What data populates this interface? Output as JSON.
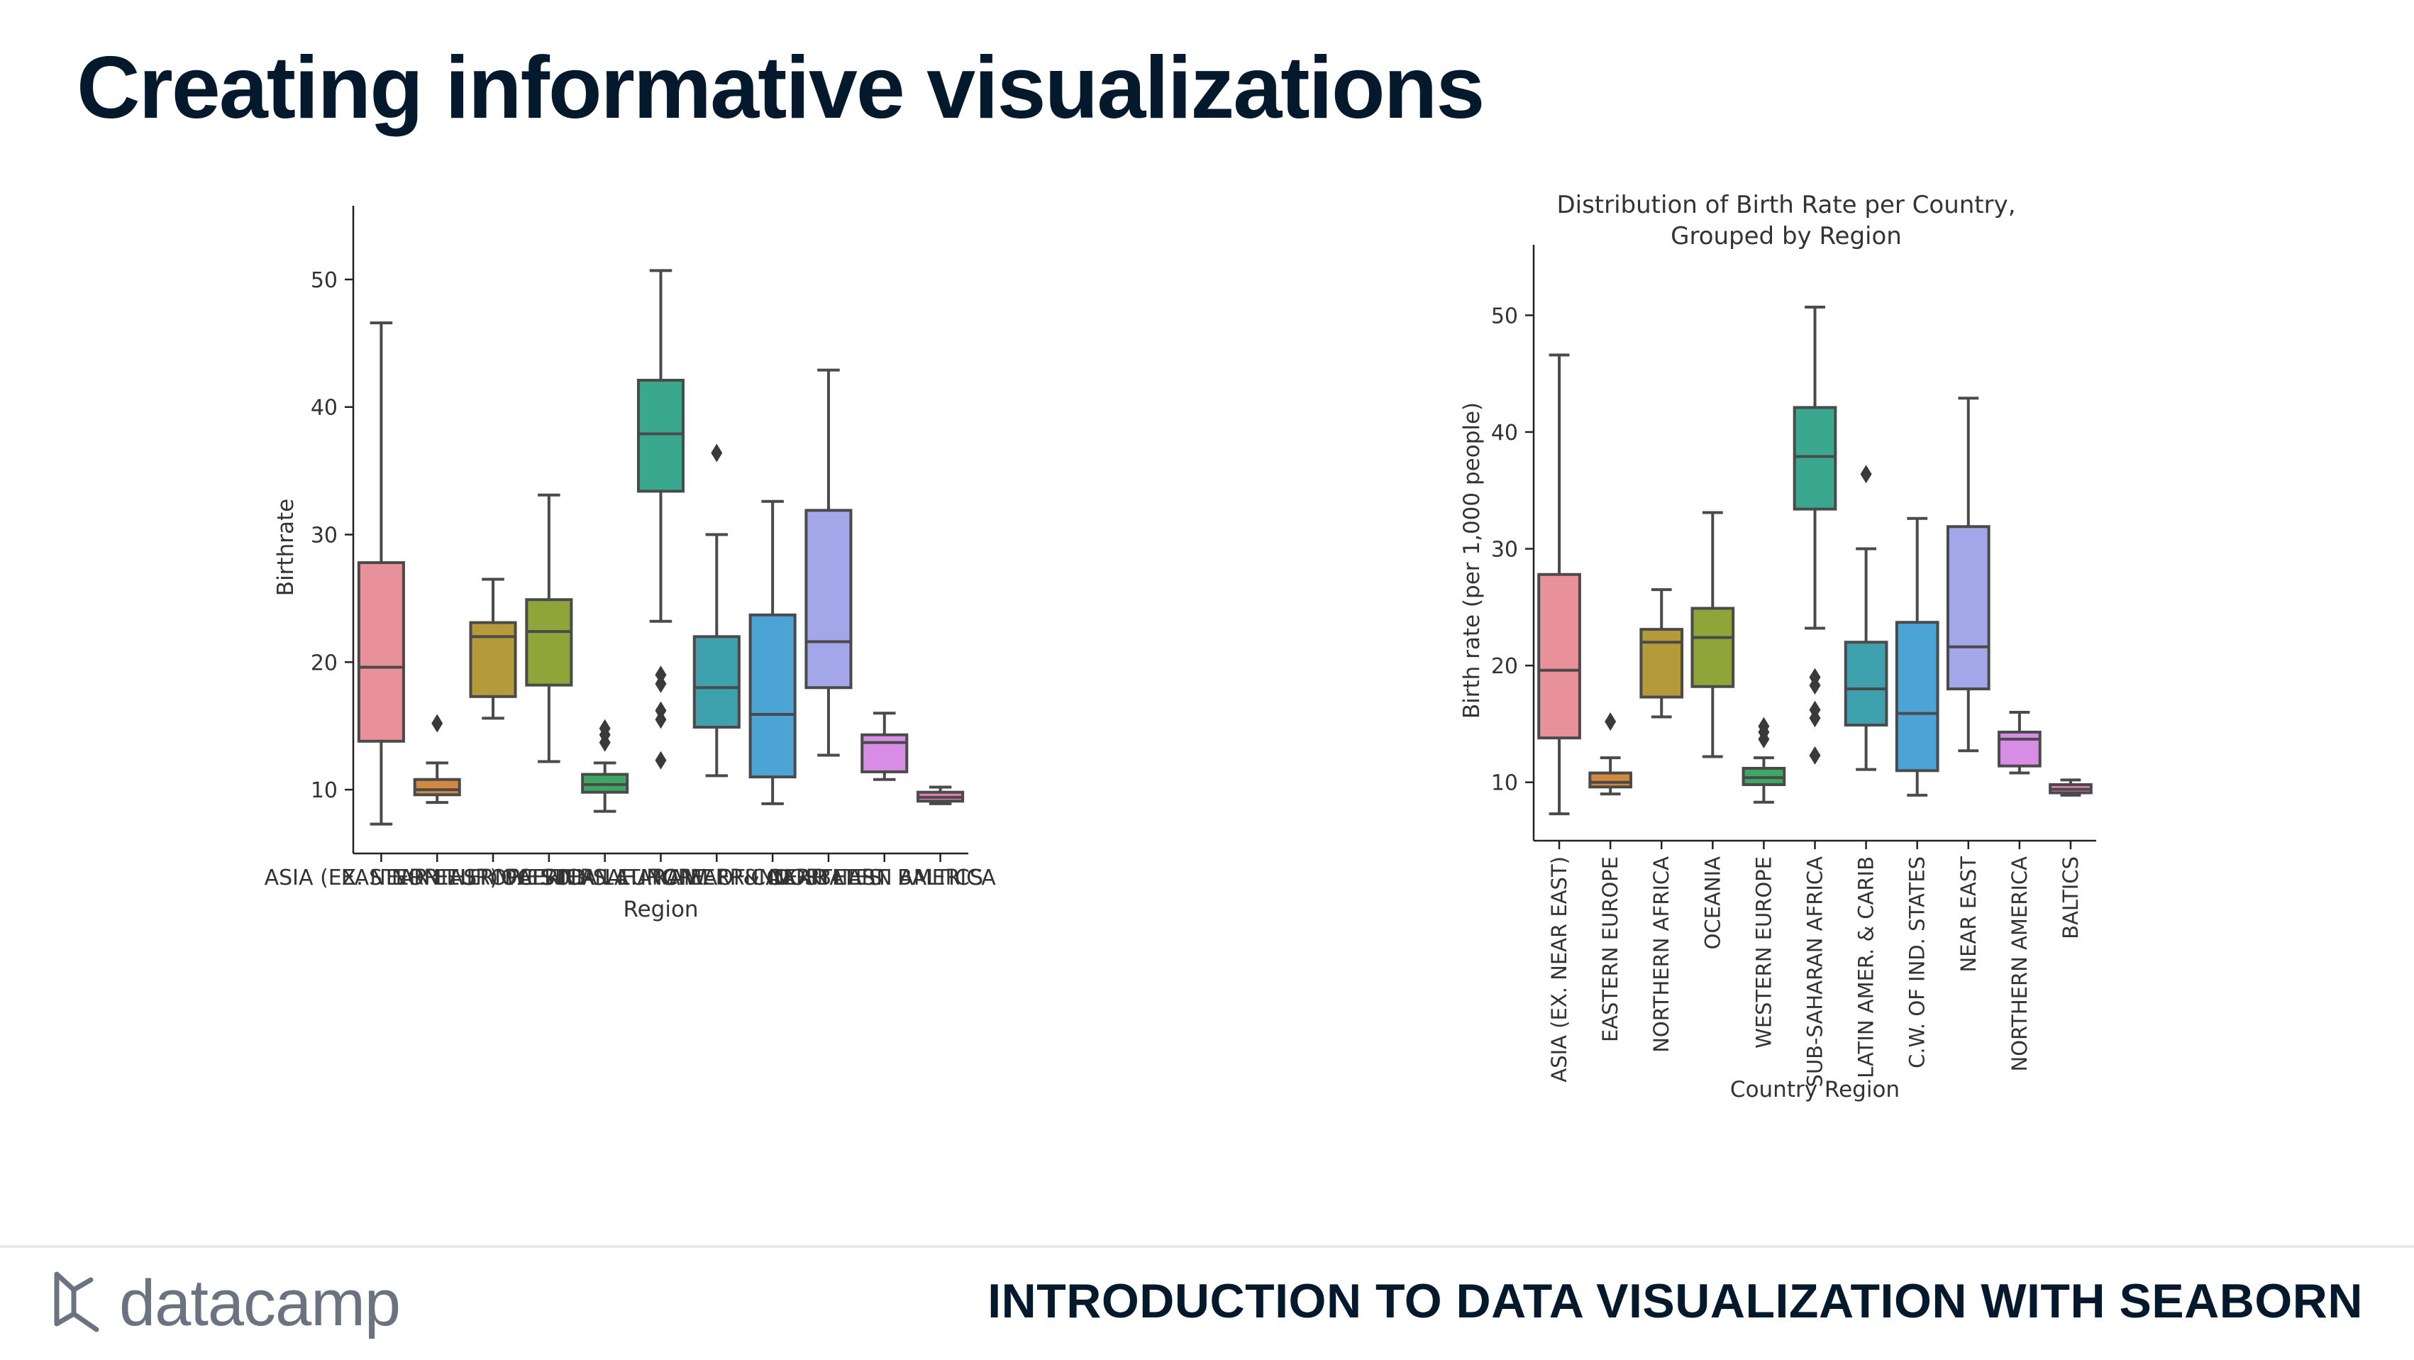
{
  "slide": {
    "title": "Creating informative visualizations",
    "footer_brand": "datacamp",
    "footer_course": "INTRODUCTION TO DATA VISUALIZATION WITH SEABORN"
  },
  "chart_data": [
    {
      "type": "box",
      "title": "",
      "xlabel": "Region",
      "ylabel": "Birthrate",
      "ylim": [
        5,
        53
      ],
      "yticks": [
        10,
        20,
        30,
        40,
        50
      ],
      "grid": false,
      "categories": [
        "ASIA (EX. NEAR EAST)",
        "EASTERN EUROPE",
        "NORTHERN AFRICA",
        "OCEANIA",
        "WESTERN EUROPE",
        "SUB-SAHARAN AFRICA",
        "LATIN AMER. & CARIB",
        "C.W. OF IND. STATES",
        "NEAR EAST",
        "NORTHERN AMERICA",
        "BALTICS"
      ],
      "boxes": [
        {
          "whislo": 7.3,
          "q1": 13.8,
          "med": 19.6,
          "q3": 27.8,
          "whishi": 46.6,
          "fliers": []
        },
        {
          "whislo": 9.0,
          "q1": 9.6,
          "med": 10.0,
          "q3": 10.8,
          "whishi": 12.1,
          "fliers": [
            15.2
          ]
        },
        {
          "whislo": 15.6,
          "q1": 17.3,
          "med": 22.0,
          "q3": 23.1,
          "whishi": 26.5,
          "fliers": []
        },
        {
          "whislo": 12.2,
          "q1": 18.2,
          "med": 22.4,
          "q3": 24.9,
          "whishi": 33.1,
          "fliers": []
        },
        {
          "whislo": 8.3,
          "q1": 9.8,
          "med": 10.4,
          "q3": 11.2,
          "whishi": 12.1,
          "fliers": [
            13.7,
            14.3,
            14.8
          ]
        },
        {
          "whislo": 23.2,
          "q1": 33.4,
          "med": 37.9,
          "q3": 42.1,
          "whishi": 50.7,
          "fliers": [
            12.3,
            15.5,
            16.2,
            18.3,
            19.0
          ]
        },
        {
          "whislo": 11.1,
          "q1": 14.9,
          "med": 18.0,
          "q3": 22.0,
          "whishi": 30.0,
          "fliers": [
            36.4
          ]
        },
        {
          "whislo": 8.9,
          "q1": 11.0,
          "med": 15.9,
          "q3": 23.7,
          "whishi": 32.6,
          "fliers": []
        },
        {
          "whislo": 12.7,
          "q1": 18.0,
          "med": 21.6,
          "q3": 31.9,
          "whishi": 42.9,
          "fliers": []
        },
        {
          "whislo": 10.8,
          "q1": 11.4,
          "med": 13.7,
          "q3": 14.3,
          "whishi": 16.0,
          "fliers": []
        },
        {
          "whislo": 8.9,
          "q1": 9.1,
          "med": 9.4,
          "q3": 9.8,
          "whishi": 10.2,
          "fliers": []
        }
      ],
      "colors": [
        "#e8919a",
        "#d2883f",
        "#b59a3a",
        "#8fa53a",
        "#3fa764",
        "#3aa88e",
        "#3ea1ad",
        "#4ba3d6",
        "#a4a6ea",
        "#d78de6",
        "#e17fb1"
      ]
    },
    {
      "type": "box",
      "title": "Distribution of Birth Rate per Country,\nGrouped by Region",
      "title_lines": [
        "Distribution of Birth Rate per Country,",
        "Grouped by Region"
      ],
      "xlabel": "Country Region",
      "ylabel": "Birth rate (per 1,000 people)",
      "ylim": [
        5,
        53
      ],
      "yticks": [
        10,
        20,
        30,
        40,
        50
      ],
      "grid": false,
      "categories": [
        "ASIA (EX. NEAR EAST)",
        "EASTERN EUROPE",
        "NORTHERN AFRICA",
        "OCEANIA",
        "WESTERN EUROPE",
        "SUB-SAHARAN AFRICA",
        "LATIN AMER. & CARIB",
        "C.W. OF IND. STATES",
        "NEAR EAST",
        "NORTHERN AMERICA",
        "BALTICS"
      ],
      "boxes": [
        {
          "whislo": 7.3,
          "q1": 13.8,
          "med": 19.6,
          "q3": 27.8,
          "whishi": 46.6,
          "fliers": []
        },
        {
          "whislo": 9.0,
          "q1": 9.6,
          "med": 10.0,
          "q3": 10.8,
          "whishi": 12.1,
          "fliers": [
            15.2
          ]
        },
        {
          "whislo": 15.6,
          "q1": 17.3,
          "med": 22.0,
          "q3": 23.1,
          "whishi": 26.5,
          "fliers": []
        },
        {
          "whislo": 12.2,
          "q1": 18.2,
          "med": 22.4,
          "q3": 24.9,
          "whishi": 33.1,
          "fliers": []
        },
        {
          "whislo": 8.3,
          "q1": 9.8,
          "med": 10.4,
          "q3": 11.2,
          "whishi": 12.1,
          "fliers": [
            13.7,
            14.3,
            14.8
          ]
        },
        {
          "whislo": 23.2,
          "q1": 33.4,
          "med": 37.9,
          "q3": 42.1,
          "whishi": 50.7,
          "fliers": [
            12.3,
            15.5,
            16.2,
            18.3,
            19.0
          ]
        },
        {
          "whislo": 11.1,
          "q1": 14.9,
          "med": 18.0,
          "q3": 22.0,
          "whishi": 30.0,
          "fliers": [
            36.4
          ]
        },
        {
          "whislo": 8.9,
          "q1": 11.0,
          "med": 15.9,
          "q3": 23.7,
          "whishi": 32.6,
          "fliers": []
        },
        {
          "whislo": 12.7,
          "q1": 18.0,
          "med": 21.6,
          "q3": 31.9,
          "whishi": 42.9,
          "fliers": []
        },
        {
          "whislo": 10.8,
          "q1": 11.4,
          "med": 13.7,
          "q3": 14.3,
          "whishi": 16.0,
          "fliers": []
        },
        {
          "whislo": 8.9,
          "q1": 9.1,
          "med": 9.4,
          "q3": 9.8,
          "whishi": 10.2,
          "fliers": []
        }
      ],
      "colors": [
        "#e8919a",
        "#d2883f",
        "#b59a3a",
        "#8fa53a",
        "#3fa764",
        "#3aa88e",
        "#3ea1ad",
        "#4ba3d6",
        "#a4a6ea",
        "#d78de6",
        "#e17fb1"
      ]
    }
  ]
}
